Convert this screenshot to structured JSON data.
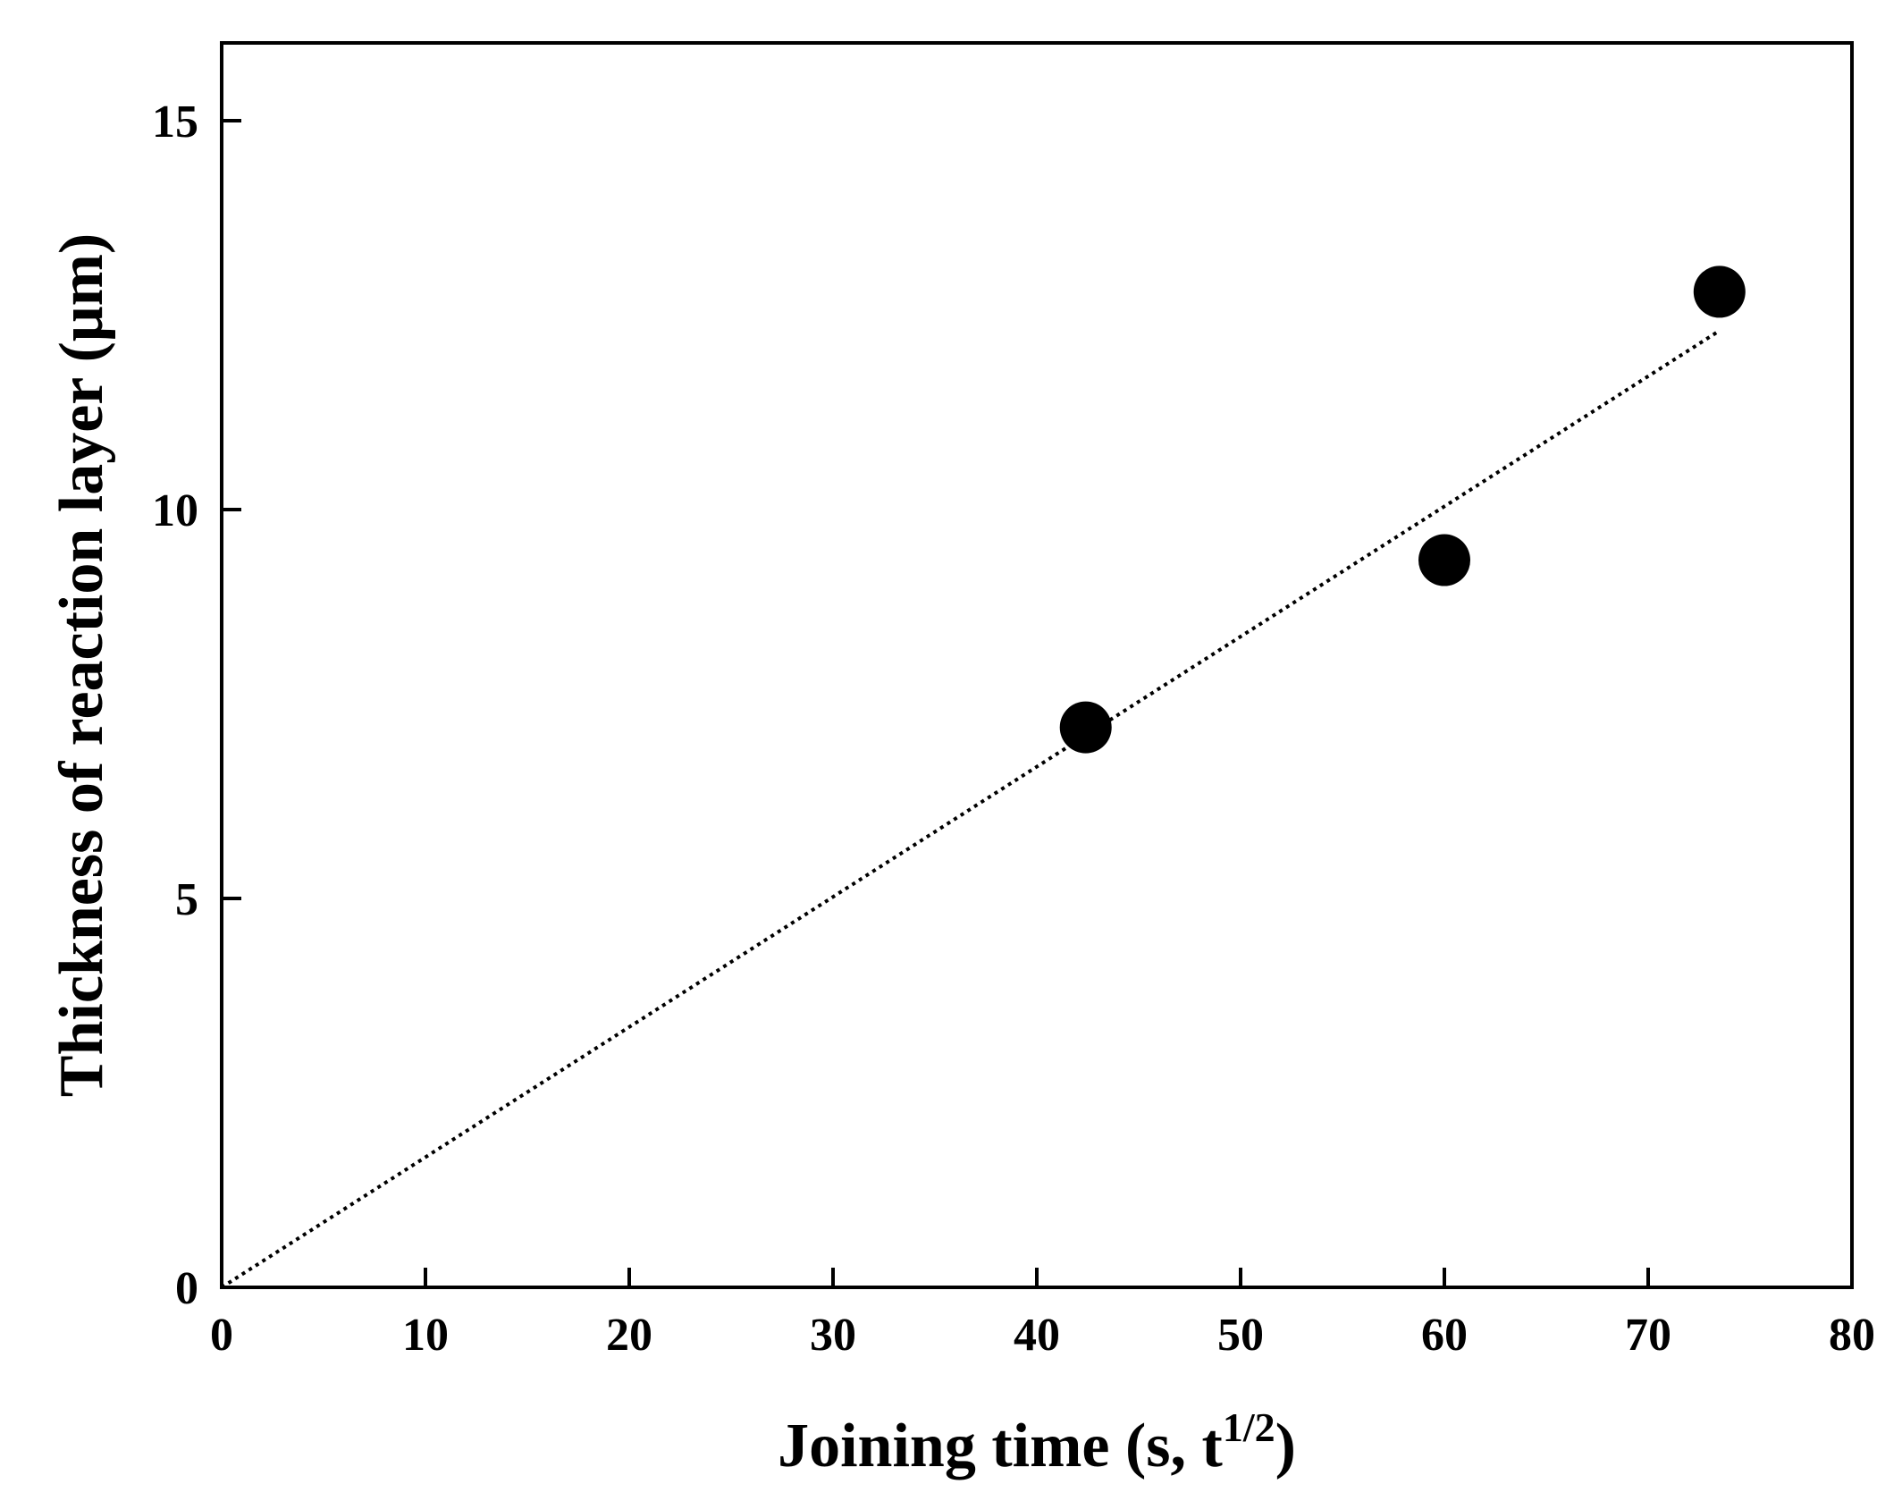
{
  "chart_data": {
    "type": "scatter",
    "xlabel": "Joining time (s, t",
    "xlabel_sup": "1/2",
    "xlabel_end": ")",
    "ylabel": "Thickness of reaction layer (μm)",
    "xlim": [
      0,
      80
    ],
    "ylim": [
      0,
      16
    ],
    "x_ticks": [
      0,
      10,
      20,
      30,
      40,
      50,
      60,
      70,
      80
    ],
    "y_ticks": [
      0,
      5,
      10,
      15
    ],
    "grid": false,
    "series": [
      {
        "marker": "filled-circle",
        "color": "#000000",
        "x": [
          42.4,
          60.0,
          73.5
        ],
        "y": [
          7.2,
          9.35,
          12.8
        ]
      }
    ],
    "fit_line": {
      "style": "dotted",
      "color": "#000000",
      "x": [
        0,
        73.5
      ],
      "y": [
        0,
        12.3
      ]
    }
  }
}
